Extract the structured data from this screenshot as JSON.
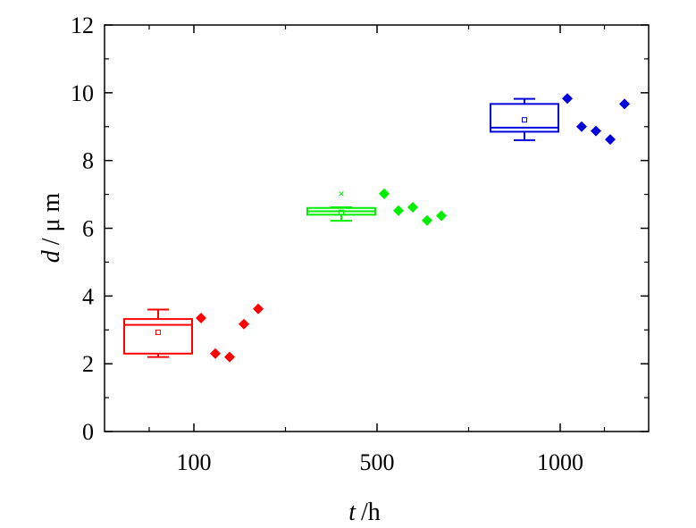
{
  "chart_data": {
    "type": "box",
    "xlabel_var": "t",
    "xlabel_unit": "/h",
    "ylabel_var": "d",
    "ylabel_unit": "/ μ m",
    "ylim": [
      0,
      12
    ],
    "yticks": [
      0,
      2,
      4,
      6,
      8,
      10,
      12
    ],
    "categories": [
      "100",
      "500",
      "1000"
    ],
    "grid": false,
    "legend": "none",
    "groups": [
      {
        "category": "100",
        "color": "#ff0000",
        "box": {
          "whisker_low": 2.2,
          "q1": 2.3,
          "median": 3.15,
          "q3": 3.32,
          "whisker_high": 3.6,
          "mean": 2.93
        },
        "points": [
          3.35,
          2.3,
          2.2,
          3.17,
          3.62
        ]
      },
      {
        "category": "500",
        "color": "#00ee00",
        "box": {
          "whisker_low": 6.22,
          "q1": 6.4,
          "median": 6.5,
          "q3": 6.6,
          "whisker_high": 6.62,
          "mean": 6.47,
          "outlier_max": 7.02
        },
        "points": [
          7.02,
          6.52,
          6.62,
          6.23,
          6.37
        ]
      },
      {
        "category": "1000",
        "color": "#0000dd",
        "box": {
          "whisker_low": 8.6,
          "q1": 8.85,
          "median": 8.97,
          "q3": 9.67,
          "whisker_high": 9.82,
          "mean": 9.2
        },
        "points": [
          9.83,
          9.0,
          8.87,
          8.62,
          9.67
        ]
      }
    ]
  }
}
